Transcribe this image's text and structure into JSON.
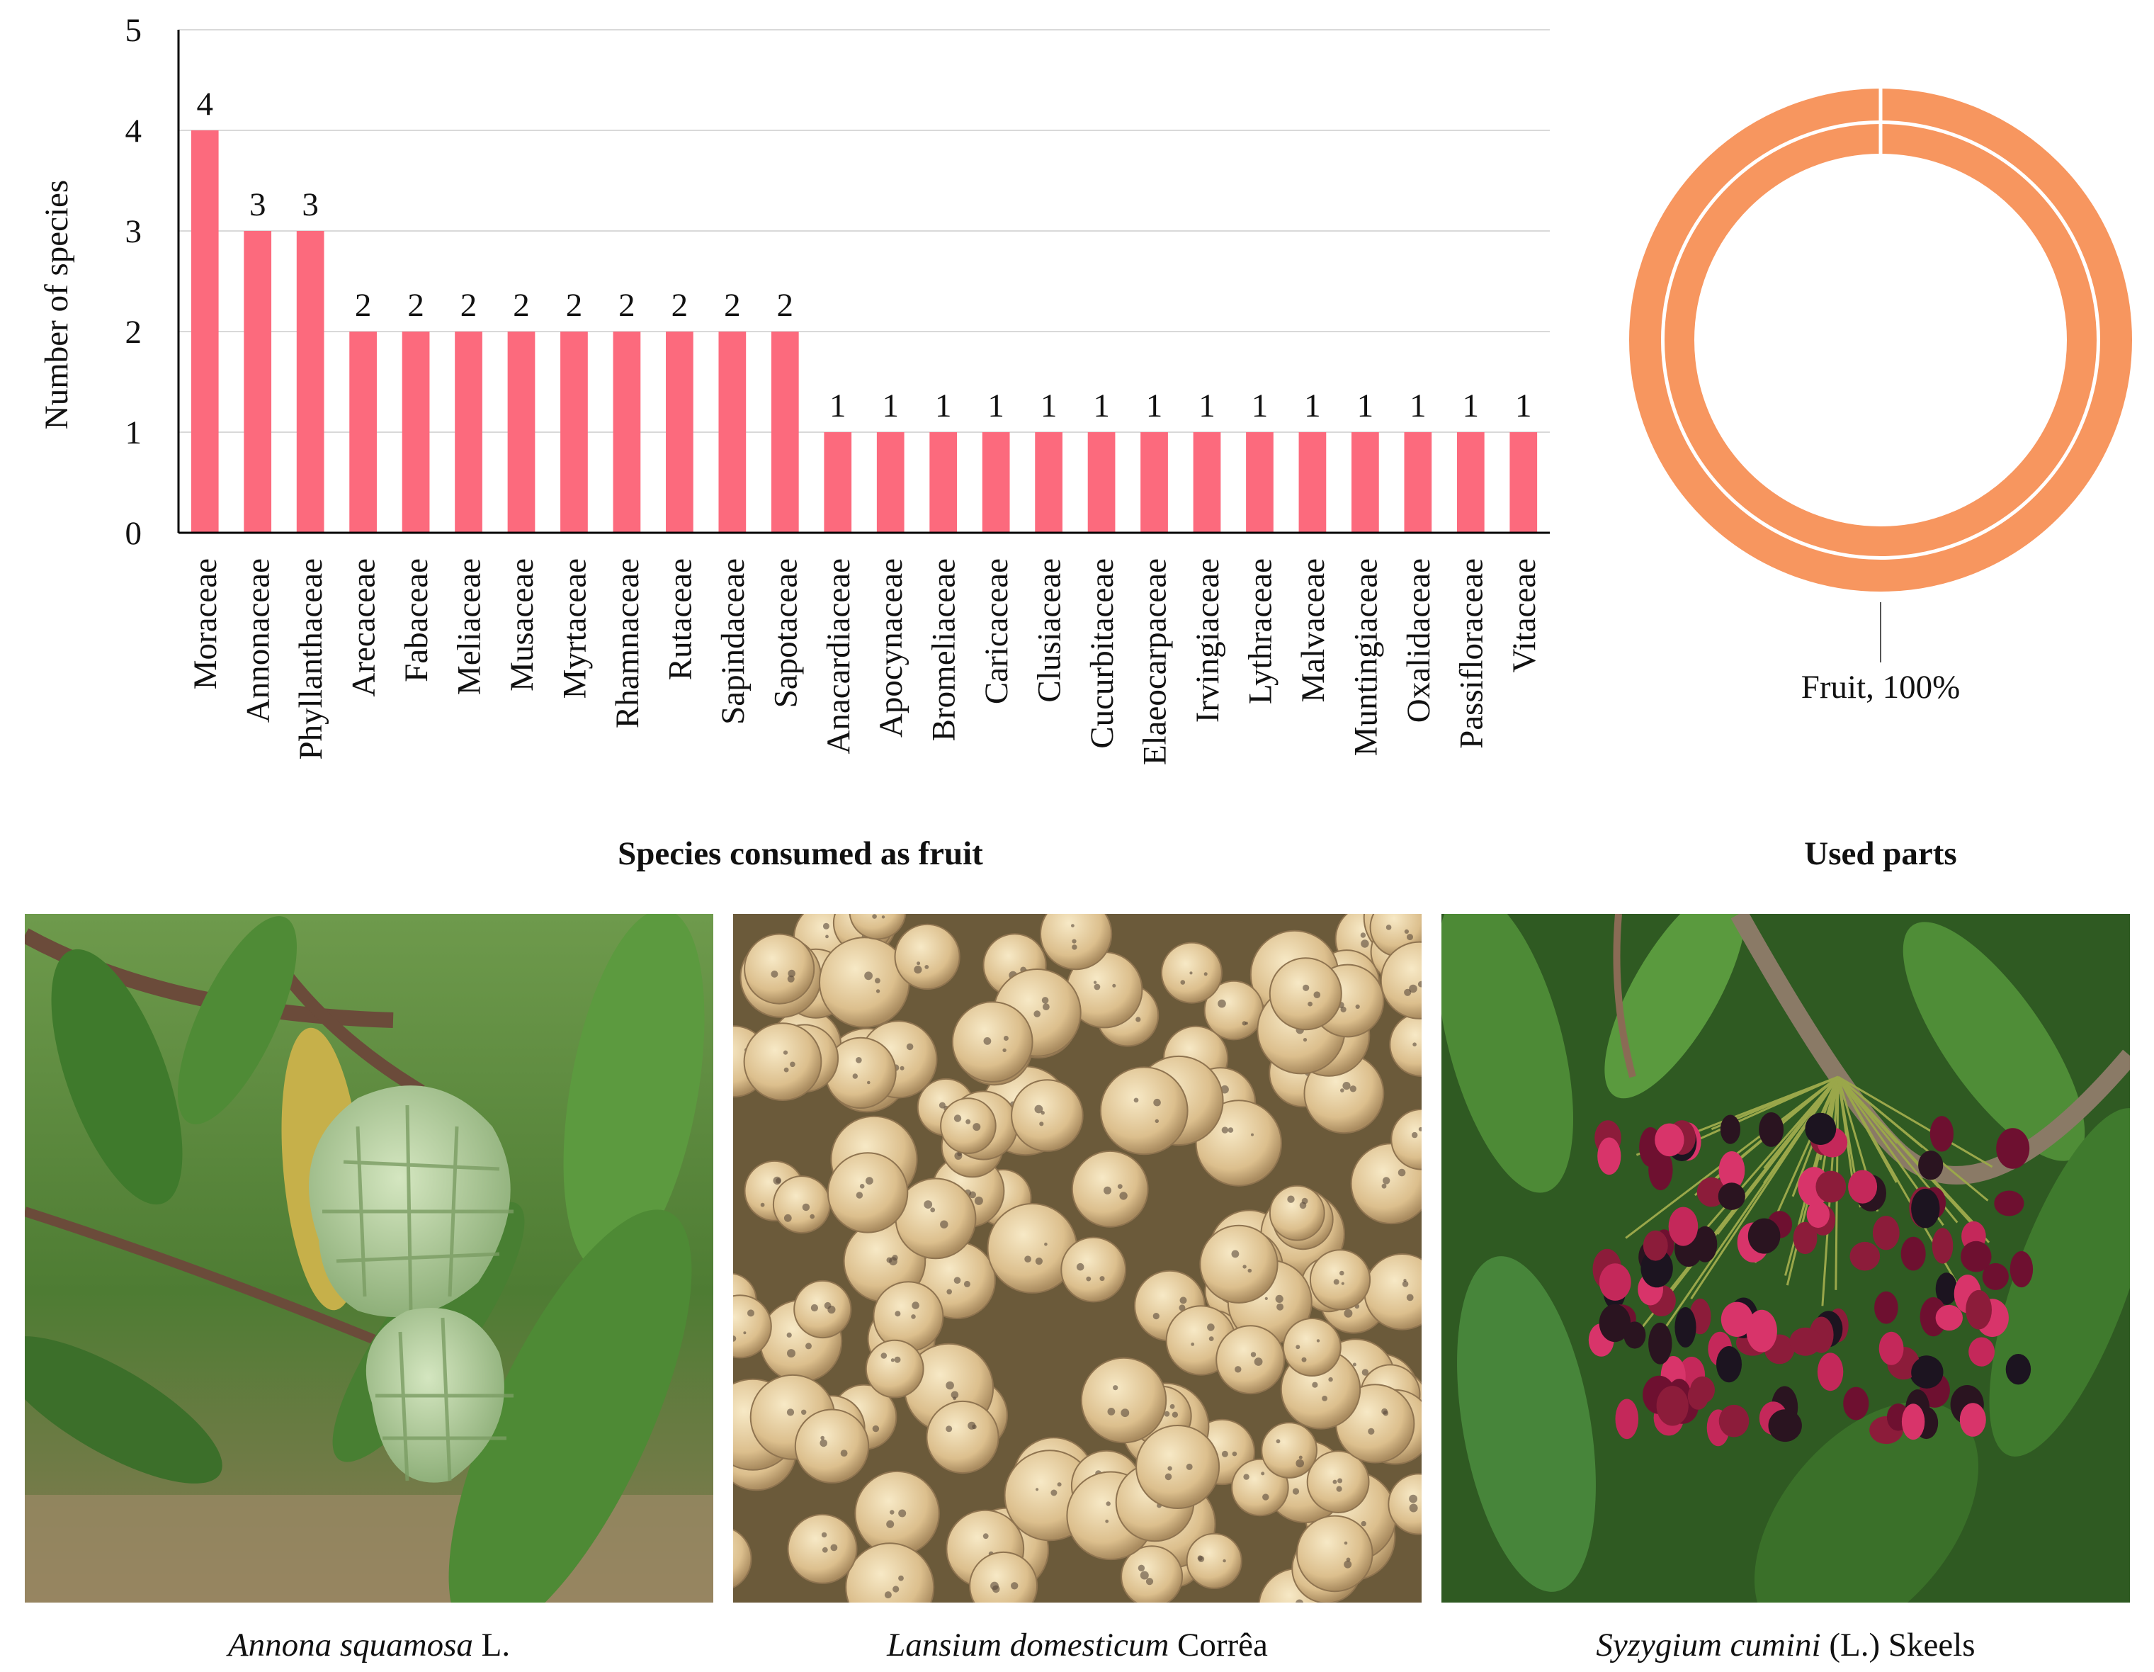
{
  "colors": {
    "bar": "#FC6A7D",
    "donut": "#F7965F",
    "grid": "#D9D9D9",
    "axis": "#000000"
  },
  "chart_data": [
    {
      "type": "bar",
      "title": "",
      "xlabel": "Species consumed as fruit",
      "ylabel": "Number of species",
      "ylim": [
        0,
        5
      ],
      "yticks": [
        0,
        1,
        2,
        3,
        4,
        5
      ],
      "grid": true,
      "categories": [
        "Moraceae",
        "Annonaceae",
        "Phyllanthaceae",
        "Arecaceae",
        "Fabaceae",
        "Meliaceae",
        "Musaceae",
        "Myrtaceae",
        "Rhamnaceae",
        "Rutaceae",
        "Sapindaceae",
        "Sapotaceae",
        "Anacardiaceae",
        "Apocynaceae",
        "Bromeliaceae",
        "Caricaceae",
        "Clusiaceae",
        "Cucurbitaceae",
        "Elaeocarpaceae",
        "Irvingiaceae",
        "Lythraceae",
        "Malvaceae",
        "Muntingiaceae",
        "Oxalidaceae",
        "Passifloraceae",
        "Vitaceae"
      ],
      "values": [
        4,
        3,
        3,
        2,
        2,
        2,
        2,
        2,
        2,
        2,
        2,
        2,
        1,
        1,
        1,
        1,
        1,
        1,
        1,
        1,
        1,
        1,
        1,
        1,
        1,
        1
      ],
      "data_labels": true
    },
    {
      "type": "pie",
      "title": "",
      "xlabel": "Used parts",
      "donut": true,
      "rings": 2,
      "slices": [
        {
          "label": "Fruit",
          "value": 100,
          "display": "Fruit, 100%"
        }
      ]
    }
  ],
  "photos": [
    {
      "species": "Annona squamosa",
      "author": " L."
    },
    {
      "species": "Lansium domesticum",
      "author": " Corrêa"
    },
    {
      "species": "Syzygium cumini",
      "author": " (L.) Skeels"
    }
  ]
}
